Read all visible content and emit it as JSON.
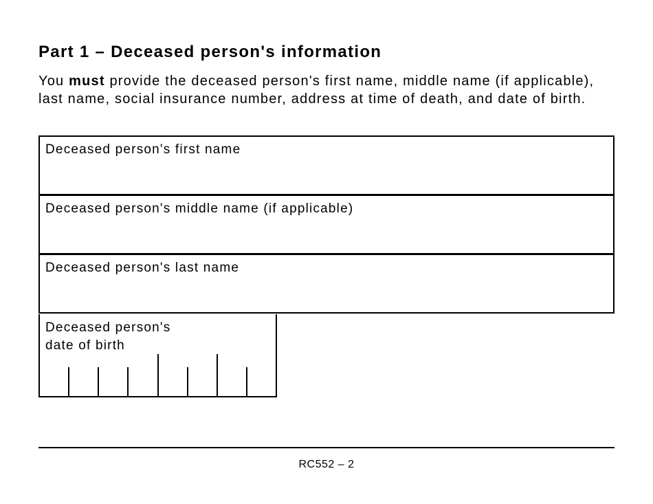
{
  "title": "Part 1 – Deceased person's information",
  "intro": {
    "before": "You ",
    "emphasis": "must",
    "after": " provide the deceased person's first name, middle name (if applicable), last name, social insurance number, address at time of death, and date of birth."
  },
  "fields": {
    "first_name": "Deceased person's first name",
    "middle_name": "Deceased person's middle name (if applicable)",
    "last_name": "Deceased person's last name",
    "date_of_birth_line1": "Deceased person's",
    "date_of_birth_line2": "date of birth"
  },
  "footer": "RC552 – 2"
}
